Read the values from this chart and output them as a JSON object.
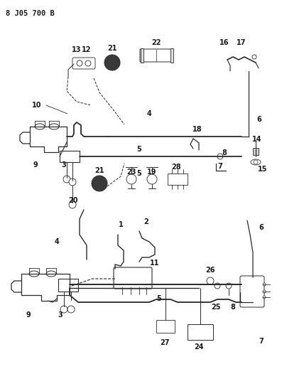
{
  "title": "8 J05 700 B",
  "bg_color": "#ffffff",
  "line_color": "#2a2a2a",
  "text_color": "#1a1a1a",
  "fig_width": 3.97,
  "fig_height": 5.33,
  "dpi": 100
}
